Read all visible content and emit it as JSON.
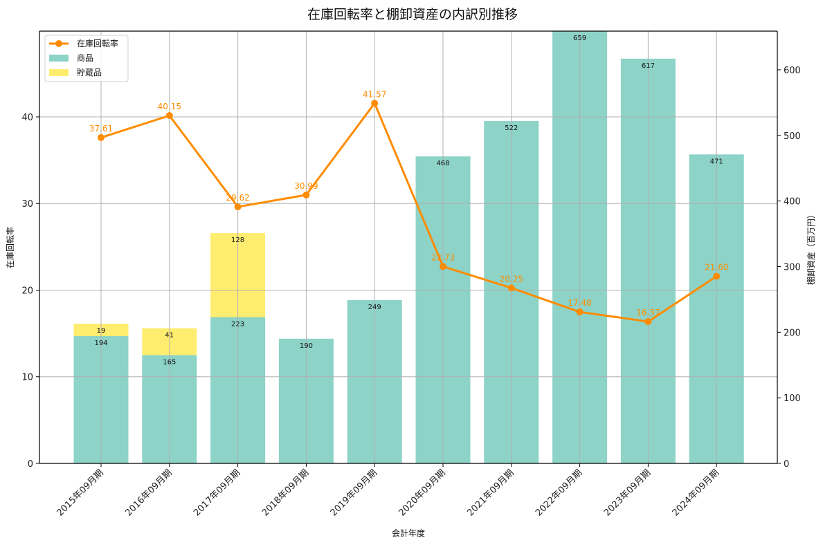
{
  "chart_data": {
    "type": "bar+line",
    "title": "在庫回転率と棚卸資産の内訳別推移",
    "xlabel": "会計年度",
    "ylabel_left": "在庫回転率",
    "ylabel_right": "棚卸資産（百万円）",
    "categories": [
      "2015年09月期",
      "2016年09月期",
      "2017年09月期",
      "2018年09月期",
      "2019年09月期",
      "2020年09月期",
      "2021年09月期",
      "2022年09月期",
      "2023年09月期",
      "2024年09月期"
    ],
    "series": [
      {
        "name": "商品",
        "type": "bar",
        "stacked": true,
        "axis": "right",
        "color": "#8dd3c7",
        "values": [
          194,
          165,
          223,
          190,
          249,
          468,
          522,
          659,
          617,
          471
        ]
      },
      {
        "name": "貯蔵品",
        "type": "bar",
        "stacked": true,
        "axis": "right",
        "color": "#ffed6f",
        "values": [
          19,
          41,
          128,
          null,
          null,
          null,
          null,
          null,
          null,
          null
        ]
      },
      {
        "name": "在庫回転率",
        "type": "line",
        "axis": "left",
        "color": "#ff8c00",
        "values": [
          37.61,
          40.15,
          29.62,
          30.99,
          41.57,
          22.73,
          20.25,
          17.48,
          16.37,
          21.6
        ],
        "labels": [
          "37.61",
          "40.15",
          "29.62",
          "30.99",
          "41.57",
          "22.73",
          "20.25",
          "17.48",
          "16.37",
          "21.60"
        ]
      }
    ],
    "ylim_left": [
      0,
      49.9
    ],
    "ylim_right": [
      0,
      659
    ],
    "yticks_left": [
      0,
      10,
      20,
      30,
      40
    ],
    "yticks_right": [
      0,
      100,
      200,
      300,
      400,
      500,
      600
    ],
    "grid": true,
    "legend_position": "upper left",
    "legend": [
      "在庫回転率",
      "商品",
      "貯蔵品"
    ]
  }
}
